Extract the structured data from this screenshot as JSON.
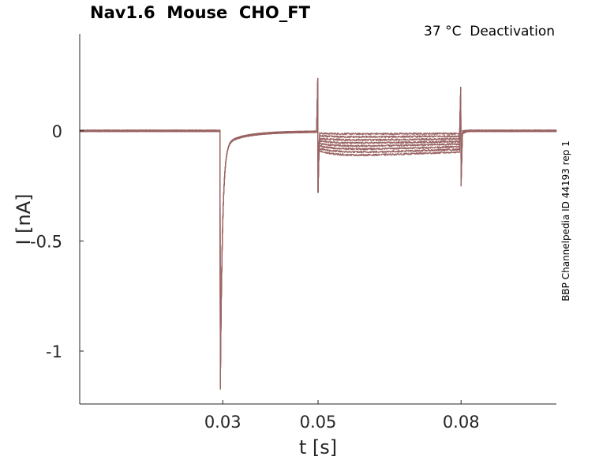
{
  "chart_data": {
    "type": "line",
    "title": "Nav1.6  Mouse  CHO_FT",
    "subtitle": "37 °C  Deactivation",
    "side_label": "BBP Channelpedia ID 44193 rep 1",
    "xlabel": "t [s]",
    "ylabel": "I [nA]",
    "xlim": [
      0.0,
      0.1
    ],
    "ylim": [
      -1.24,
      0.44
    ],
    "xticks": [
      0.03,
      0.05,
      0.08
    ],
    "xtick_labels": [
      "0.03",
      "0.05",
      "0.08"
    ],
    "yticks": [
      0,
      -0.5,
      -1
    ],
    "ytick_labels": [
      "0",
      "-0.5",
      "-1"
    ],
    "grid": false,
    "trace_color": "#9a6363",
    "series": [
      {
        "tail_current": -0.015
      },
      {
        "tail_current": -0.03
      },
      {
        "tail_current": -0.045
      },
      {
        "tail_current": -0.06
      },
      {
        "tail_current": -0.075
      },
      {
        "tail_current": -0.09
      },
      {
        "tail_current": -0.105
      },
      {
        "tail_current": -0.12
      }
    ],
    "events": {
      "activation_time": 0.0295,
      "activation_peak": -1.1,
      "step_time": 0.05,
      "step_spike_up": 0.3,
      "step_spike_down": -0.28,
      "off_time": 0.08,
      "off_spike_up": 0.25,
      "off_spike_down": -0.25
    }
  }
}
